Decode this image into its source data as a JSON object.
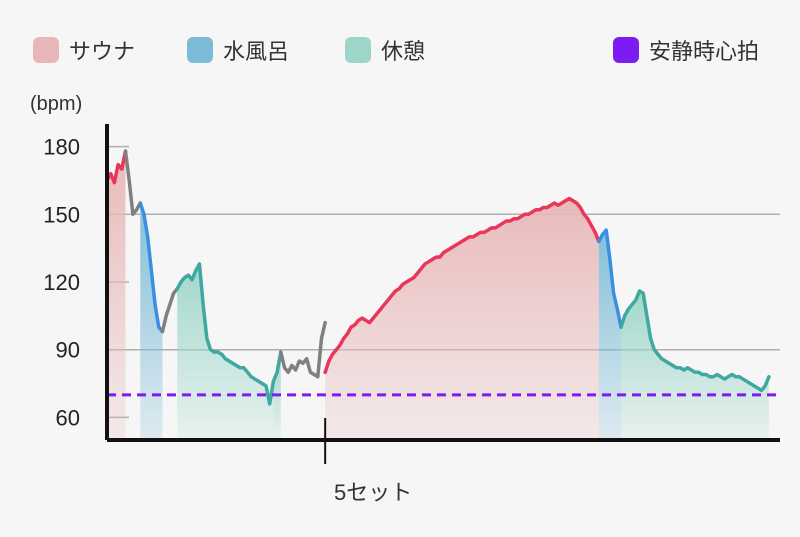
{
  "legend": [
    {
      "label": "サウナ",
      "color": "#e8b7b7"
    },
    {
      "label": "水風呂",
      "color": "#7dbcd8"
    },
    {
      "label": "休憩",
      "color": "#9dd6c9"
    },
    {
      "label": "安静時心拍",
      "color": "#7c1cf2"
    }
  ],
  "chart_data": {
    "type": "line",
    "title": "",
    "ylabel": "(bpm)",
    "xlabel": "",
    "ylim": [
      50,
      190
    ],
    "y_ticks": [
      60,
      90,
      120,
      150,
      180
    ],
    "x_marker_label": "5セット",
    "resting_hr": 70,
    "colors": {
      "sauna": "#e8375a",
      "cold": "#3a8fe0",
      "rest": "#3fa8a0",
      "other": "#808080",
      "resting": "#7c1cf2"
    },
    "series": [
      {
        "phase": "sauna",
        "x": [
          0,
          1,
          2,
          3,
          4,
          5
        ],
        "y": [
          165,
          168,
          164,
          172,
          170,
          178
        ]
      },
      {
        "phase": "other",
        "x": [
          5,
          6,
          7,
          8,
          9
        ],
        "y": [
          178,
          165,
          150,
          152,
          155
        ]
      },
      {
        "phase": "cold",
        "x": [
          9,
          10,
          11,
          12,
          13,
          14,
          15
        ],
        "y": [
          155,
          150,
          140,
          125,
          110,
          100,
          98
        ]
      },
      {
        "phase": "other",
        "x": [
          15,
          16,
          17,
          18,
          19
        ],
        "y": [
          98,
          105,
          110,
          115,
          117
        ]
      },
      {
        "phase": "rest",
        "x": [
          19,
          20,
          21,
          22,
          23,
          24,
          25,
          26,
          27,
          28,
          29,
          30,
          31,
          32,
          33,
          34,
          35,
          36,
          37,
          38,
          39,
          40,
          41,
          42,
          43,
          44,
          45
        ],
        "y": [
          117,
          120,
          122,
          123,
          121,
          125,
          128,
          110,
          95,
          90,
          89,
          89,
          88,
          86,
          85,
          84,
          83,
          82,
          82,
          80,
          78,
          77,
          76,
          75,
          74,
          66,
          76
        ]
      },
      {
        "phase": "rest",
        "x": [
          45,
          46,
          47
        ],
        "y": [
          76,
          80,
          89
        ]
      },
      {
        "phase": "other",
        "x": [
          47,
          48,
          49,
          50,
          51,
          52,
          53,
          54,
          55,
          56,
          57,
          58,
          59
        ],
        "y": [
          89,
          82,
          80,
          83,
          81,
          85,
          84,
          86,
          80,
          79,
          78,
          95,
          102
        ]
      },
      {
        "phase": "sauna",
        "x": [
          59,
          60,
          61,
          62,
          63,
          64,
          65,
          66,
          67,
          68,
          69,
          70,
          71,
          72,
          73,
          74,
          75,
          76,
          77,
          78,
          79,
          80,
          81,
          82,
          83,
          84,
          85,
          86,
          87,
          88,
          89,
          90,
          91,
          92,
          93,
          94,
          95,
          96,
          97,
          98,
          99,
          100,
          101,
          102,
          103,
          104,
          105,
          106,
          107,
          108,
          109,
          110,
          111,
          112,
          113,
          114,
          115,
          116,
          117,
          118,
          119,
          120,
          121,
          122,
          123,
          124,
          125,
          126,
          127,
          128,
          129,
          130,
          131,
          132,
          133
        ],
        "y": [
          80,
          85,
          88,
          90,
          92,
          95,
          97,
          100,
          101,
          103,
          104,
          103,
          102,
          104,
          106,
          108,
          110,
          112,
          114,
          116,
          117,
          119,
          120,
          121,
          122,
          124,
          126,
          128,
          129,
          130,
          131,
          131,
          133,
          134,
          135,
          136,
          137,
          138,
          139,
          140,
          140,
          141,
          142,
          142,
          143,
          144,
          144,
          145,
          146,
          147,
          147,
          148,
          148,
          149,
          150,
          150,
          151,
          152,
          152,
          153,
          153,
          154,
          155,
          154,
          155,
          156,
          157,
          156,
          155,
          153,
          150,
          148,
          145,
          142,
          138
        ]
      },
      {
        "phase": "cold",
        "x": [
          133,
          134,
          135,
          136,
          137,
          138,
          139
        ],
        "y": [
          138,
          141,
          143,
          130,
          115,
          108,
          100
        ]
      },
      {
        "phase": "rest",
        "x": [
          139,
          140,
          141,
          142,
          143,
          144,
          145,
          146,
          147,
          148,
          149,
          150,
          151,
          152,
          153,
          154,
          155,
          156,
          157,
          158,
          159,
          160,
          161,
          162,
          163,
          164,
          165,
          166,
          167,
          168,
          169,
          170,
          171,
          172,
          173,
          174,
          175,
          176,
          177,
          178,
          179
        ],
        "y": [
          100,
          105,
          108,
          110,
          112,
          116,
          115,
          105,
          95,
          90,
          88,
          86,
          85,
          84,
          83,
          82,
          82,
          81,
          82,
          81,
          80,
          80,
          79,
          79,
          78,
          78,
          79,
          78,
          77,
          78,
          79,
          78,
          78,
          77,
          76,
          75,
          74,
          73,
          72,
          74,
          78
        ]
      }
    ]
  }
}
